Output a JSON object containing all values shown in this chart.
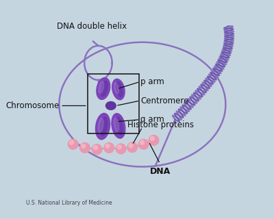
{
  "background_color": "#c5d5e0",
  "labels": {
    "dna_double_helix": "DNA double helix",
    "chromosome": "Chromosome",
    "p_arm": "p arm",
    "centromere": "Centromere",
    "q_arm": "q arm",
    "histone_proteins": "Histone proteins",
    "dna": "DNA",
    "credit": "U.S. National Library of Medicine"
  },
  "colors": {
    "purple_strand": "#8B72BE",
    "purple_chr": "#7B45B8",
    "purple_chr_dark": "#5a2d9c",
    "purple_chr_light": "#9B72CB",
    "pink_bead": "#E899B0",
    "pink_highlight": "#F5C0CC",
    "line_color": "#111111",
    "text_color": "#111111"
  },
  "layout": {
    "xlim": [
      0,
      10
    ],
    "ylim": [
      0,
      8
    ],
    "figw": 4.0,
    "figh": 3.2,
    "dpi": 100
  }
}
